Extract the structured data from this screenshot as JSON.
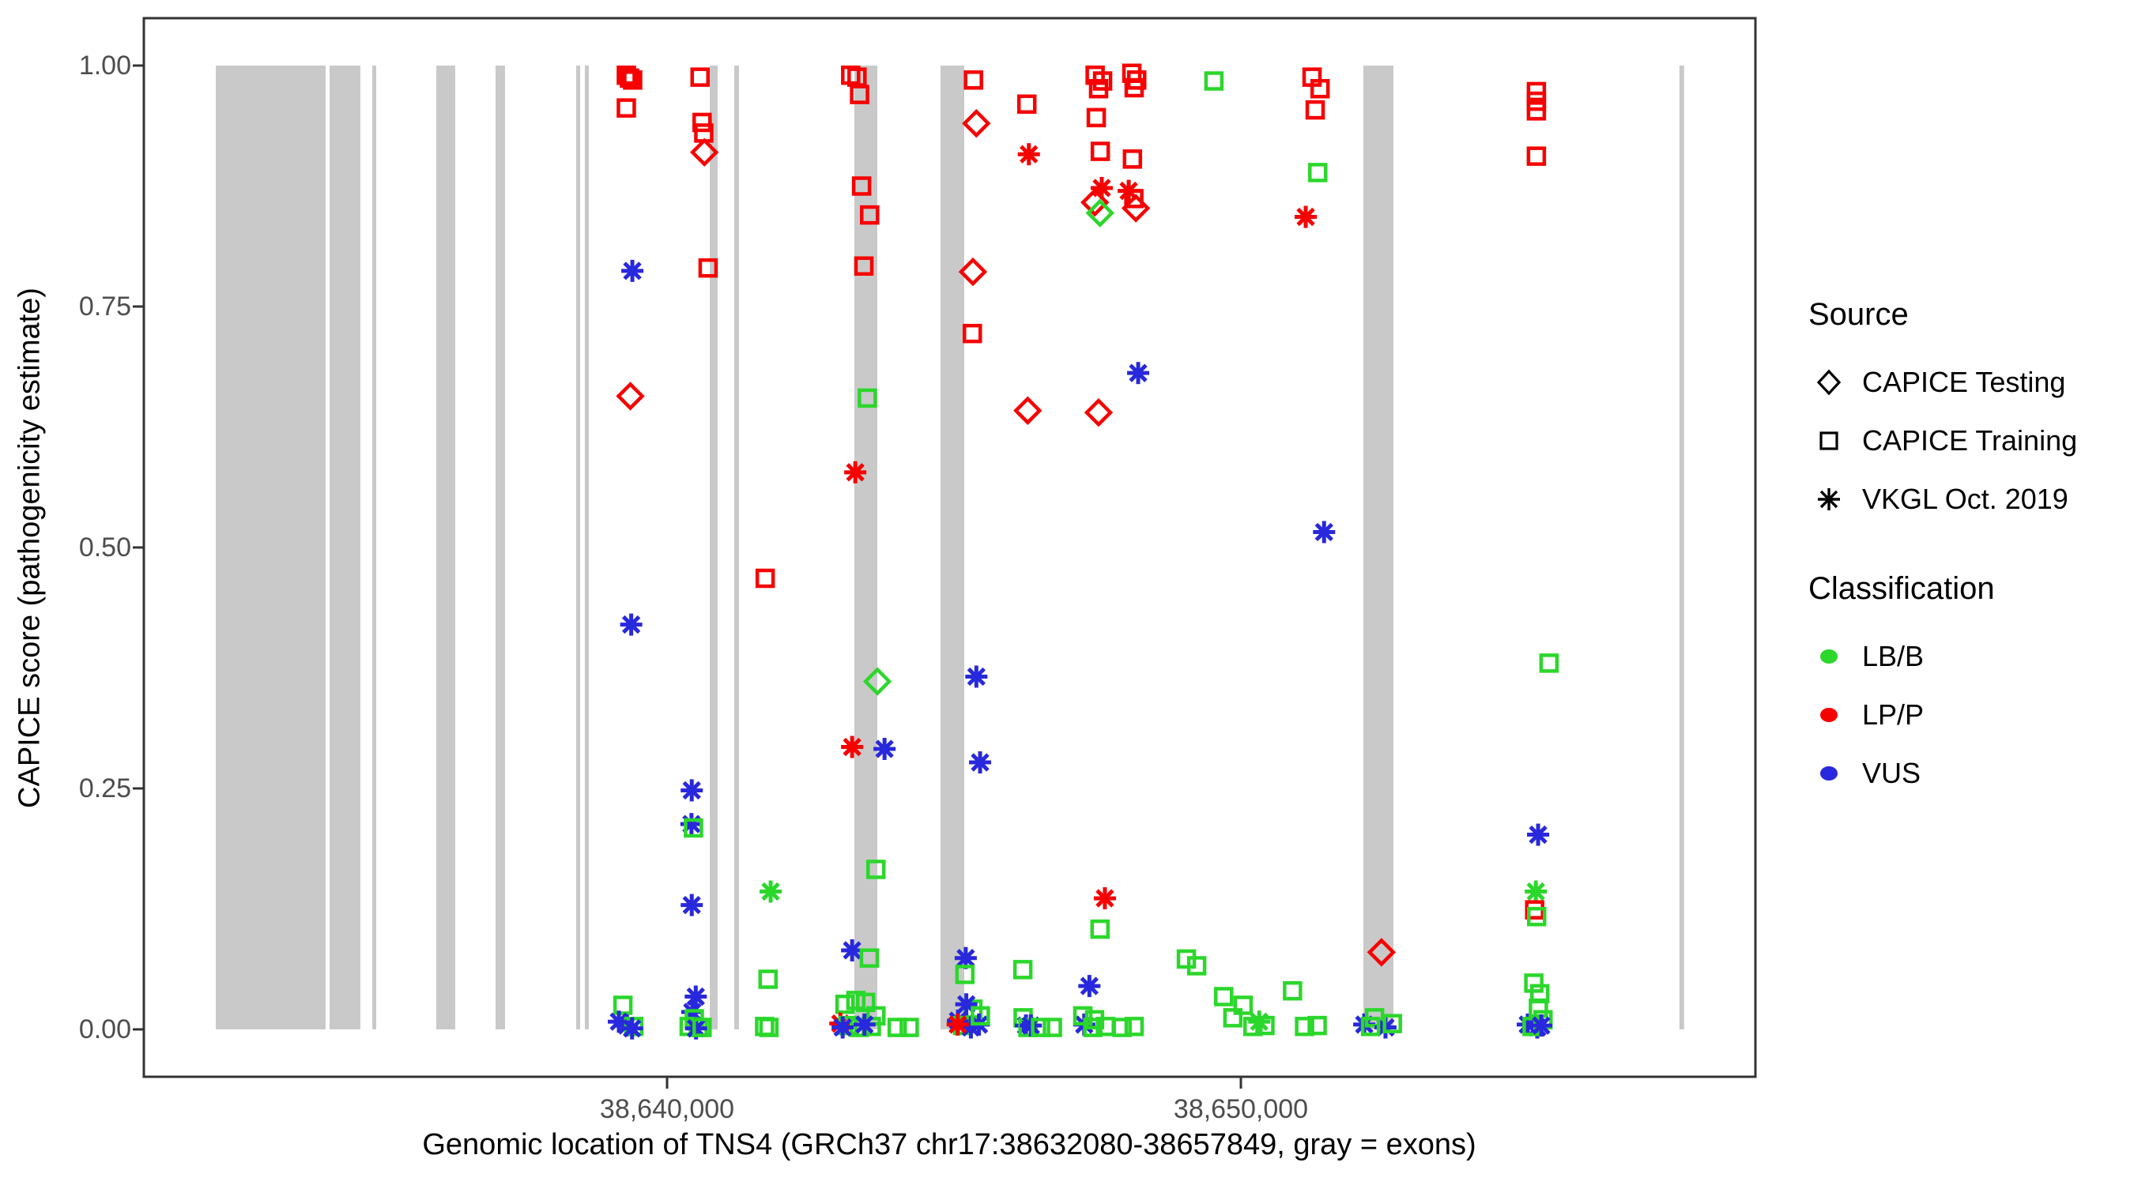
{
  "figure": {
    "background": "#ffffff"
  },
  "axes": {
    "y": {
      "title": "CAPICE score (pathogenicity estimate)",
      "ticks": [
        {
          "value": 1.0,
          "label": "1.00"
        },
        {
          "value": 0.75,
          "label": "0.75"
        },
        {
          "value": 0.5,
          "label": "0.50"
        },
        {
          "value": 0.25,
          "label": "0.25"
        },
        {
          "value": 0.0,
          "label": "0.00"
        }
      ]
    },
    "x": {
      "title": "Genomic location of TNS4 (GRCh37 chr17:38632080-38657849, gray = exons)",
      "ticks": [
        {
          "value": 38640000,
          "label": "38,640,000"
        },
        {
          "value": 38650000,
          "label": "38,650,000"
        }
      ]
    }
  },
  "legend": {
    "source": {
      "title": "Source",
      "items": [
        {
          "label": "CAPICE Testing",
          "marker": "diamond"
        },
        {
          "label": "CAPICE Training",
          "marker": "square"
        },
        {
          "label": "VKGL Oct. 2019",
          "marker": "asterisk"
        }
      ]
    },
    "classification": {
      "title": "Classification",
      "items": [
        {
          "label": "LB/B",
          "color": "#2bd72b"
        },
        {
          "label": "LP/P",
          "color": "#f70000"
        },
        {
          "label": "VUS",
          "color": "#2828dd"
        }
      ]
    }
  },
  "chart_data": {
    "type": "scatter",
    "title": "",
    "xlabel": "Genomic location of TNS4 (GRCh37 chr17:38632080-38657849, gray = exons)",
    "ylabel": "CAPICE score (pathogenicity estimate)",
    "x_range": [
      38632080,
      38657849
    ],
    "y_range": [
      0.0,
      1.0
    ],
    "grid": false,
    "legend_position": "right",
    "colors": {
      "band": "#c9c9c9",
      "border": "#333333",
      "tick": "#333333",
      "g": "#2bd72b",
      "r": "#f70000",
      "b": "#2828dd"
    },
    "class_names": {
      "g": "LB/B",
      "r": "LP/P",
      "b": "VUS"
    },
    "shape_names": {
      "d": "CAPICE Testing",
      "s": "CAPICE Training",
      "a": "VKGL Oct. 2019"
    },
    "exons": [
      [
        38632135,
        38634050
      ],
      [
        38634118,
        38634655
      ],
      [
        38634862,
        38634931
      ],
      [
        38635978,
        38636308
      ],
      [
        38637011,
        38637176
      ],
      [
        38638416,
        38638485
      ],
      [
        38638567,
        38638636
      ],
      [
        38640744,
        38640881
      ],
      [
        38641171,
        38641253
      ],
      [
        38643264,
        38643664
      ],
      [
        38644765,
        38645179
      ],
      [
        38652134,
        38652658
      ],
      [
        38657643,
        38657725
      ]
    ],
    "points": [
      [
        38639290,
        0.99,
        "s",
        "r"
      ],
      [
        38639400,
        0.985,
        "s",
        "r"
      ],
      [
        38639345,
        0.987,
        "s",
        "r"
      ],
      [
        38639290,
        0.956,
        "s",
        "r"
      ],
      [
        38639395,
        0.787,
        "a",
        "b"
      ],
      [
        38639360,
        0.657,
        "d",
        "r"
      ],
      [
        38639375,
        0.42,
        "a",
        "b"
      ],
      [
        38639230,
        0.025,
        "s",
        "g"
      ],
      [
        38639160,
        0.008,
        "a",
        "b"
      ],
      [
        38639300,
        0.004,
        "a",
        "b"
      ],
      [
        38639420,
        0.003,
        "s",
        "g"
      ],
      [
        38639390,
        0.001,
        "a",
        "b"
      ],
      [
        38640575,
        0.988,
        "s",
        "r"
      ],
      [
        38640610,
        0.941,
        "s",
        "r"
      ],
      [
        38640640,
        0.93,
        "s",
        "r"
      ],
      [
        38640650,
        0.91,
        "d",
        "r"
      ],
      [
        38640715,
        0.79,
        "s",
        "r"
      ],
      [
        38640430,
        0.248,
        "a",
        "b"
      ],
      [
        38640425,
        0.213,
        "a",
        "b"
      ],
      [
        38640460,
        0.209,
        "s",
        "g"
      ],
      [
        38640430,
        0.129,
        "a",
        "b"
      ],
      [
        38640500,
        0.034,
        "a",
        "b"
      ],
      [
        38640440,
        0.018,
        "a",
        "b"
      ],
      [
        38640475,
        0.011,
        "s",
        "g"
      ],
      [
        38640385,
        0.003,
        "s",
        "g"
      ],
      [
        38640545,
        0.002,
        "s",
        "g"
      ],
      [
        38640505,
        0.001,
        "a",
        "b"
      ],
      [
        38640610,
        0.002,
        "s",
        "g"
      ],
      [
        38641710,
        0.468,
        "s",
        "r"
      ],
      [
        38641805,
        0.143,
        "a",
        "g"
      ],
      [
        38641760,
        0.052,
        "s",
        "g"
      ],
      [
        38641700,
        0.003,
        "s",
        "g"
      ],
      [
        38641775,
        0.002,
        "s",
        "g"
      ],
      [
        38643200,
        0.99,
        "s",
        "r"
      ],
      [
        38643310,
        0.988,
        "s",
        "r"
      ],
      [
        38643355,
        0.97,
        "s",
        "r"
      ],
      [
        38643390,
        0.875,
        "s",
        "r"
      ],
      [
        38643530,
        0.845,
        "s",
        "r"
      ],
      [
        38643430,
        0.792,
        "s",
        "r"
      ],
      [
        38643490,
        0.655,
        "s",
        "g"
      ],
      [
        38643280,
        0.578,
        "a",
        "r"
      ],
      [
        38643665,
        0.361,
        "d",
        "g"
      ],
      [
        38643225,
        0.293,
        "a",
        "r"
      ],
      [
        38643790,
        0.291,
        "a",
        "b"
      ],
      [
        38643640,
        0.166,
        "s",
        "g"
      ],
      [
        38643225,
        0.082,
        "a",
        "b"
      ],
      [
        38643525,
        0.074,
        "s",
        "g"
      ],
      [
        38643100,
        0.026,
        "s",
        "g"
      ],
      [
        38643290,
        0.03,
        "s",
        "g"
      ],
      [
        38643460,
        0.028,
        "s",
        "g"
      ],
      [
        38643640,
        0.014,
        "s",
        "g"
      ],
      [
        38643020,
        0.006,
        "a",
        "r"
      ],
      [
        38643150,
        0.004,
        "s",
        "g"
      ],
      [
        38643350,
        0.002,
        "s",
        "g"
      ],
      [
        38643560,
        0.003,
        "s",
        "g"
      ],
      [
        38643060,
        0.002,
        "a",
        "b"
      ],
      [
        38643440,
        0.005,
        "a",
        "b"
      ],
      [
        38644010,
        0.002,
        "s",
        "g"
      ],
      [
        38644220,
        0.002,
        "s",
        "g"
      ],
      [
        38645340,
        0.985,
        "s",
        "r"
      ],
      [
        38645390,
        0.94,
        "d",
        "r"
      ],
      [
        38645330,
        0.786,
        "d",
        "r"
      ],
      [
        38645320,
        0.722,
        "s",
        "r"
      ],
      [
        38645390,
        0.366,
        "a",
        "b"
      ],
      [
        38645455,
        0.277,
        "a",
        "b"
      ],
      [
        38645205,
        0.074,
        "a",
        "b"
      ],
      [
        38645190,
        0.057,
        "s",
        "g"
      ],
      [
        38645330,
        0.021,
        "s",
        "g"
      ],
      [
        38645215,
        0.026,
        "a",
        "b"
      ],
      [
        38645070,
        0.009,
        "a",
        "b"
      ],
      [
        38645150,
        0.004,
        "s",
        "g"
      ],
      [
        38645295,
        0.002,
        "a",
        "b"
      ],
      [
        38645435,
        0.005,
        "a",
        "b"
      ],
      [
        38645065,
        0.005,
        "a",
        "r"
      ],
      [
        38645460,
        0.014,
        "s",
        "g"
      ],
      [
        38646270,
        0.96,
        "s",
        "r"
      ],
      [
        38646305,
        0.908,
        "a",
        "r"
      ],
      [
        38646285,
        0.642,
        "d",
        "r"
      ],
      [
        38646200,
        0.062,
        "s",
        "g"
      ],
      [
        38646205,
        0.012,
        "s",
        "g"
      ],
      [
        38646255,
        0.004,
        "a",
        "b"
      ],
      [
        38646290,
        0.002,
        "s",
        "g"
      ],
      [
        38646340,
        0.004,
        "a",
        "b"
      ],
      [
        38646510,
        0.002,
        "s",
        "g"
      ],
      [
        38646715,
        0.002,
        "s",
        "g"
      ],
      [
        38647460,
        0.99,
        "s",
        "r"
      ],
      [
        38647590,
        0.984,
        "s",
        "r"
      ],
      [
        38647520,
        0.976,
        "s",
        "r"
      ],
      [
        38647480,
        0.946,
        "s",
        "r"
      ],
      [
        38647550,
        0.911,
        "s",
        "r"
      ],
      [
        38647575,
        0.873,
        "a",
        "r"
      ],
      [
        38647455,
        0.858,
        "d",
        "r"
      ],
      [
        38647545,
        0.847,
        "d",
        "g"
      ],
      [
        38647520,
        0.64,
        "d",
        "r"
      ],
      [
        38647630,
        0.136,
        "a",
        "r"
      ],
      [
        38647545,
        0.104,
        "s",
        "g"
      ],
      [
        38647360,
        0.045,
        "a",
        "b"
      ],
      [
        38647270,
        0.005,
        "a",
        "b"
      ],
      [
        38647245,
        0.014,
        "s",
        "g"
      ],
      [
        38647450,
        0.01,
        "s",
        "g"
      ],
      [
        38647420,
        0.002,
        "s",
        "g"
      ],
      [
        38647640,
        0.003,
        "s",
        "g"
      ],
      [
        38647930,
        0.002,
        "s",
        "g"
      ],
      [
        38648140,
        0.003,
        "s",
        "g"
      ],
      [
        38648100,
        0.992,
        "s",
        "r"
      ],
      [
        38648185,
        0.985,
        "s",
        "r"
      ],
      [
        38648140,
        0.977,
        "s",
        "r"
      ],
      [
        38648110,
        0.903,
        "s",
        "r"
      ],
      [
        38648045,
        0.87,
        "a",
        "r"
      ],
      [
        38648135,
        0.862,
        "s",
        "r"
      ],
      [
        38648170,
        0.852,
        "d",
        "r"
      ],
      [
        38648210,
        0.681,
        "a",
        "b"
      ],
      [
        38649530,
        0.984,
        "s",
        "g"
      ],
      [
        38649050,
        0.073,
        "s",
        "g"
      ],
      [
        38649230,
        0.066,
        "s",
        "g"
      ],
      [
        38649700,
        0.034,
        "s",
        "g"
      ],
      [
        38649860,
        0.012,
        "s",
        "g"
      ],
      [
        38650040,
        0.025,
        "s",
        "g"
      ],
      [
        38650210,
        0.003,
        "s",
        "g"
      ],
      [
        38650420,
        0.004,
        "s",
        "g"
      ],
      [
        38650320,
        0.008,
        "a",
        "g"
      ],
      [
        38650900,
        0.04,
        "s",
        "g"
      ],
      [
        38651110,
        0.003,
        "s",
        "g"
      ],
      [
        38651330,
        0.004,
        "s",
        "g"
      ],
      [
        38651240,
        0.988,
        "s",
        "r"
      ],
      [
        38651380,
        0.976,
        "s",
        "r"
      ],
      [
        38651295,
        0.954,
        "s",
        "r"
      ],
      [
        38651340,
        0.889,
        "s",
        "g"
      ],
      [
        38651130,
        0.843,
        "a",
        "r"
      ],
      [
        38651450,
        0.516,
        "a",
        "b"
      ],
      [
        38652450,
        0.08,
        "d",
        "r"
      ],
      [
        38652150,
        0.005,
        "a",
        "b"
      ],
      [
        38652330,
        0.012,
        "s",
        "g"
      ],
      [
        38652520,
        0.002,
        "a",
        "b"
      ],
      [
        38652640,
        0.006,
        "s",
        "g"
      ],
      [
        38652260,
        0.003,
        "s",
        "g"
      ],
      [
        38655150,
        0.973,
        "s",
        "r"
      ],
      [
        38655150,
        0.963,
        "s",
        "r"
      ],
      [
        38655150,
        0.953,
        "s",
        "r"
      ],
      [
        38655150,
        0.906,
        "s",
        "r"
      ],
      [
        38655370,
        0.38,
        "s",
        "g"
      ],
      [
        38655180,
        0.202,
        "a",
        "b"
      ],
      [
        38655140,
        0.143,
        "a",
        "g"
      ],
      [
        38655120,
        0.124,
        "s",
        "r"
      ],
      [
        38655155,
        0.117,
        "s",
        "g"
      ],
      [
        38655105,
        0.048,
        "s",
        "g"
      ],
      [
        38655210,
        0.037,
        "s",
        "g"
      ],
      [
        38655000,
        0.005,
        "a",
        "b"
      ],
      [
        38655165,
        0.002,
        "a",
        "b"
      ],
      [
        38655265,
        0.01,
        "s",
        "g"
      ],
      [
        38655185,
        0.022,
        "s",
        "g"
      ],
      [
        38655075,
        0.003,
        "s",
        "g"
      ],
      [
        38655235,
        0.004,
        "a",
        "b"
      ]
    ]
  }
}
